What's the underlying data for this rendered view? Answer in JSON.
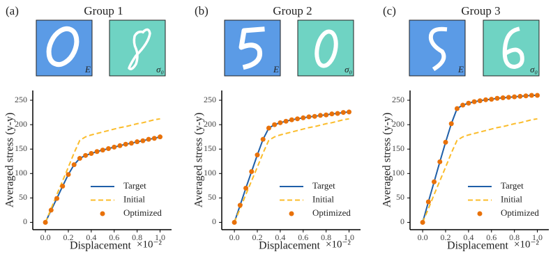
{
  "chart_data": [
    {
      "type": "line",
      "panel_label": "(a)",
      "title": "Group 1",
      "image_labels": [
        "E",
        "σ₀"
      ],
      "xlabel": "Displacement",
      "x_offset_label": "×10⁻²",
      "ylabel": "Averaged stress (y-y)",
      "x": [
        0,
        0.05,
        0.1,
        0.15,
        0.2,
        0.25,
        0.3,
        0.35,
        0.4,
        0.45,
        0.5,
        0.55,
        0.6,
        0.65,
        0.7,
        0.75,
        0.8,
        0.85,
        0.9,
        0.95,
        1.0
      ],
      "series": [
        {
          "name": "Target",
          "color": "#1f5fa8",
          "style": "solid",
          "values": [
            0,
            25,
            49,
            74,
            98,
            118,
            131,
            137,
            141,
            145,
            148,
            151,
            154,
            157,
            160,
            162,
            165,
            167,
            170,
            172,
            175
          ]
        },
        {
          "name": "Initial",
          "color": "#fbbc2a",
          "style": "dashed",
          "values": [
            0,
            28,
            57,
            85,
            113,
            142,
            168,
            175,
            179,
            182,
            185,
            188,
            191,
            194,
            196,
            199,
            202,
            204,
            207,
            210,
            212
          ]
        },
        {
          "name": "Optimized",
          "color": "#e8710a",
          "style": "markers",
          "values": [
            0,
            25,
            49,
            74,
            98,
            118,
            131,
            137,
            141,
            145,
            148,
            151,
            154,
            157,
            160,
            162,
            165,
            167,
            170,
            172,
            175
          ]
        }
      ],
      "xlim": [
        -0.11,
        1.1
      ],
      "ylim": [
        -15,
        270
      ],
      "xticks": [
        {
          "value": 0,
          "label": "0.0"
        },
        0.2,
        0.4,
        0.6,
        0.8,
        {
          "value": 1,
          "label": "1.0"
        }
      ],
      "yticks": [
        0,
        50,
        100,
        150,
        200,
        250
      ],
      "legend": "lower right"
    },
    {
      "type": "line",
      "panel_label": "(b)",
      "title": "Group 2",
      "image_labels": [
        "E",
        "σ₀"
      ],
      "xlabel": "Displacement",
      "x_offset_label": "×10⁻²",
      "ylabel": "Averaged stress (y-y)",
      "x": [
        0,
        0.05,
        0.1,
        0.15,
        0.2,
        0.25,
        0.3,
        0.35,
        0.4,
        0.45,
        0.5,
        0.55,
        0.6,
        0.65,
        0.7,
        0.75,
        0.8,
        0.85,
        0.9,
        0.95,
        1.0
      ],
      "series": [
        {
          "name": "Target",
          "color": "#1f5fa8",
          "style": "solid",
          "values": [
            0,
            35,
            70,
            104,
            138,
            170,
            193,
            200,
            204,
            207,
            210,
            212,
            214,
            216,
            217,
            219,
            220,
            222,
            223,
            225,
            226
          ]
        },
        {
          "name": "Initial",
          "color": "#fbbc2a",
          "style": "dashed",
          "values": [
            0,
            28,
            57,
            85,
            113,
            142,
            168,
            175,
            179,
            182,
            185,
            188,
            191,
            194,
            196,
            199,
            202,
            204,
            207,
            210,
            212
          ]
        },
        {
          "name": "Optimized",
          "color": "#e8710a",
          "style": "markers",
          "values": [
            0,
            35,
            70,
            104,
            138,
            170,
            193,
            200,
            204,
            207,
            210,
            212,
            214,
            216,
            217,
            219,
            220,
            222,
            223,
            225,
            226
          ]
        }
      ],
      "xlim": [
        -0.11,
        1.1
      ],
      "ylim": [
        -15,
        270
      ],
      "xticks": [
        {
          "value": 0,
          "label": "0.0"
        },
        0.2,
        0.4,
        0.6,
        0.8,
        {
          "value": 1,
          "label": "1.0"
        }
      ],
      "yticks": [
        0,
        50,
        100,
        150,
        200,
        250
      ],
      "legend": "lower right"
    },
    {
      "type": "line",
      "panel_label": "(c)",
      "title": "Group 3",
      "image_labels": [
        "E",
        "σ₀"
      ],
      "xlabel": "Displacement",
      "x_offset_label": "×10⁻²",
      "ylabel": "Averaged stress (y-y)",
      "x": [
        0,
        0.05,
        0.1,
        0.15,
        0.2,
        0.25,
        0.3,
        0.35,
        0.4,
        0.45,
        0.5,
        0.55,
        0.6,
        0.65,
        0.7,
        0.75,
        0.8,
        0.85,
        0.9,
        0.95,
        1.0
      ],
      "series": [
        {
          "name": "Target",
          "color": "#1f5fa8",
          "style": "solid",
          "values": [
            0,
            42,
            83,
            124,
            164,
            202,
            233,
            240,
            244,
            247,
            249,
            251,
            252,
            254,
            255,
            256,
            257,
            258,
            259,
            260,
            260
          ]
        },
        {
          "name": "Initial",
          "color": "#fbbc2a",
          "style": "dashed",
          "values": [
            0,
            28,
            57,
            85,
            113,
            142,
            168,
            175,
            179,
            182,
            185,
            188,
            191,
            194,
            196,
            199,
            202,
            204,
            207,
            210,
            212
          ]
        },
        {
          "name": "Optimized",
          "color": "#e8710a",
          "style": "markers",
          "values": [
            0,
            42,
            83,
            124,
            164,
            202,
            233,
            240,
            244,
            247,
            249,
            251,
            252,
            254,
            255,
            256,
            257,
            258,
            259,
            260,
            260
          ]
        }
      ],
      "xlim": [
        -0.11,
        1.1
      ],
      "ylim": [
        -15,
        270
      ],
      "xticks": [
        {
          "value": 0,
          "label": "0.0"
        },
        0.2,
        0.4,
        0.6,
        0.8,
        {
          "value": 1,
          "label": "1.0"
        }
      ],
      "yticks": [
        0,
        50,
        100,
        150,
        200,
        250
      ],
      "legend": "lower right"
    }
  ]
}
